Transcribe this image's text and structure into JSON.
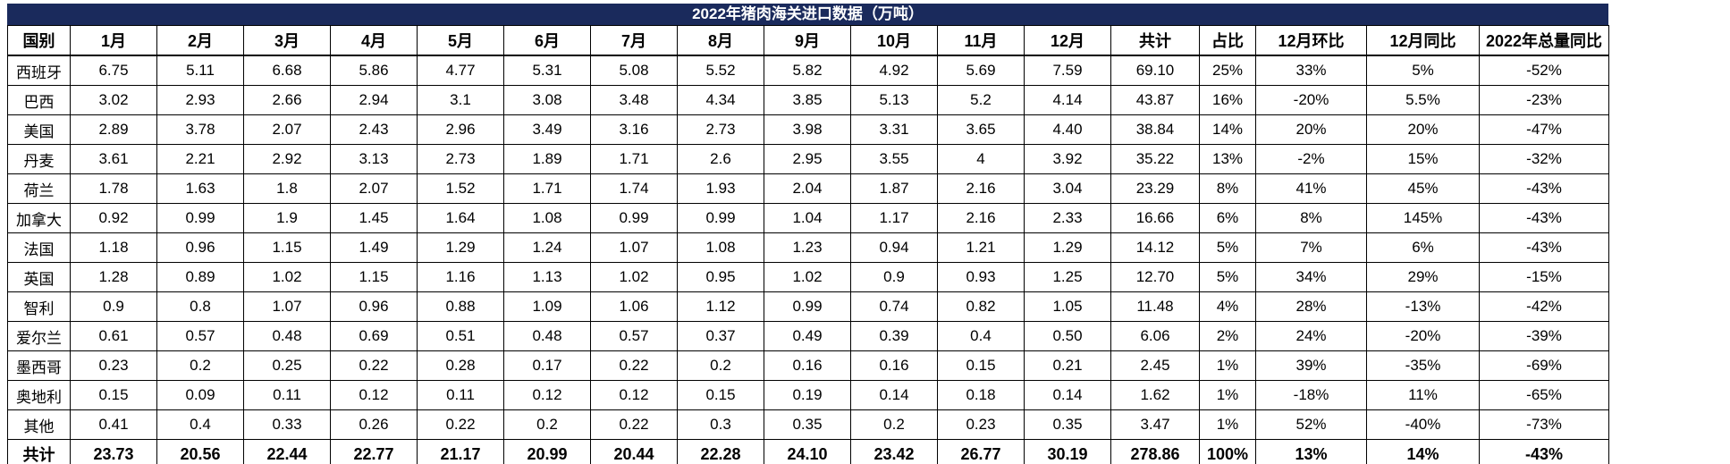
{
  "title": "2022年猪肉海关进口数据（万吨）",
  "colors": {
    "title_bg": "#1A2A5C",
    "title_text": "#FFFFFF",
    "border": "#000000",
    "text": "#000000"
  },
  "chart_data": {
    "type": "table",
    "title": "2022年猪肉海关进口数据（万吨）",
    "columns": [
      "国别",
      "1月",
      "2月",
      "3月",
      "4月",
      "5月",
      "6月",
      "7月",
      "8月",
      "9月",
      "10月",
      "11月",
      "12月",
      "共计",
      "占比",
      "12月环比",
      "12月同比",
      "2022年总量同比"
    ],
    "rows": [
      [
        "西班牙",
        "6.75",
        "5.11",
        "6.68",
        "5.86",
        "4.77",
        "5.31",
        "5.08",
        "5.52",
        "5.82",
        "4.92",
        "5.69",
        "7.59",
        "69.10",
        "25%",
        "33%",
        "5%",
        "-52%"
      ],
      [
        "巴西",
        "3.02",
        "2.93",
        "2.66",
        "2.94",
        "3.1",
        "3.08",
        "3.48",
        "4.34",
        "3.85",
        "5.13",
        "5.2",
        "4.14",
        "43.87",
        "16%",
        "-20%",
        "5.5%",
        "-23%"
      ],
      [
        "美国",
        "2.89",
        "3.78",
        "2.07",
        "2.43",
        "2.96",
        "3.49",
        "3.16",
        "2.73",
        "3.98",
        "3.31",
        "3.65",
        "4.40",
        "38.84",
        "14%",
        "20%",
        "20%",
        "-47%"
      ],
      [
        "丹麦",
        "3.61",
        "2.21",
        "2.92",
        "3.13",
        "2.73",
        "1.89",
        "1.71",
        "2.6",
        "2.95",
        "3.55",
        "4",
        "3.92",
        "35.22",
        "13%",
        "-2%",
        "15%",
        "-32%"
      ],
      [
        "荷兰",
        "1.78",
        "1.63",
        "1.8",
        "2.07",
        "1.52",
        "1.71",
        "1.74",
        "1.93",
        "2.04",
        "1.87",
        "2.16",
        "3.04",
        "23.29",
        "8%",
        "41%",
        "45%",
        "-43%"
      ],
      [
        "加拿大",
        "0.92",
        "0.99",
        "1.9",
        "1.45",
        "1.64",
        "1.08",
        "0.99",
        "0.99",
        "1.04",
        "1.17",
        "2.16",
        "2.33",
        "16.66",
        "6%",
        "8%",
        "145%",
        "-43%"
      ],
      [
        "法国",
        "1.18",
        "0.96",
        "1.15",
        "1.49",
        "1.29",
        "1.24",
        "1.07",
        "1.08",
        "1.23",
        "0.94",
        "1.21",
        "1.29",
        "14.12",
        "5%",
        "7%",
        "6%",
        "-43%"
      ],
      [
        "英国",
        "1.28",
        "0.89",
        "1.02",
        "1.15",
        "1.16",
        "1.13",
        "1.02",
        "0.95",
        "1.02",
        "0.9",
        "0.93",
        "1.25",
        "12.70",
        "5%",
        "34%",
        "29%",
        "-15%"
      ],
      [
        "智利",
        "0.9",
        "0.8",
        "1.07",
        "0.96",
        "0.88",
        "1.09",
        "1.06",
        "1.12",
        "0.99",
        "0.74",
        "0.82",
        "1.05",
        "11.48",
        "4%",
        "28%",
        "-13%",
        "-42%"
      ],
      [
        "爱尔兰",
        "0.61",
        "0.57",
        "0.48",
        "0.69",
        "0.51",
        "0.48",
        "0.57",
        "0.37",
        "0.49",
        "0.39",
        "0.4",
        "0.50",
        "6.06",
        "2%",
        "24%",
        "-20%",
        "-39%"
      ],
      [
        "墨西哥",
        "0.23",
        "0.2",
        "0.25",
        "0.22",
        "0.28",
        "0.17",
        "0.22",
        "0.2",
        "0.16",
        "0.16",
        "0.15",
        "0.21",
        "2.45",
        "1%",
        "39%",
        "-35%",
        "-69%"
      ],
      [
        "奥地利",
        "0.15",
        "0.09",
        "0.11",
        "0.12",
        "0.11",
        "0.12",
        "0.12",
        "0.15",
        "0.19",
        "0.14",
        "0.18",
        "0.14",
        "1.62",
        "1%",
        "-18%",
        "11%",
        "-65%"
      ],
      [
        "其他",
        "0.41",
        "0.4",
        "0.33",
        "0.26",
        "0.22",
        "0.2",
        "0.22",
        "0.3",
        "0.35",
        "0.2",
        "0.23",
        "0.35",
        "3.47",
        "1%",
        "52%",
        "-40%",
        "-73%"
      ]
    ],
    "total_row": [
      "共计",
      "23.73",
      "20.56",
      "22.44",
      "22.77",
      "21.17",
      "20.99",
      "20.44",
      "22.28",
      "24.10",
      "23.42",
      "26.77",
      "30.19",
      "278.86",
      "100%",
      "13%",
      "14%",
      "-43%"
    ]
  }
}
